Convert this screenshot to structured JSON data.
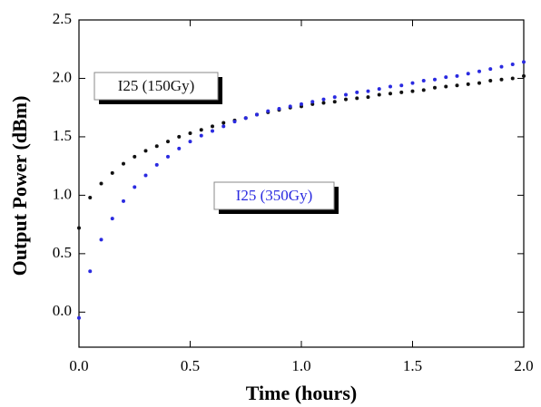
{
  "chart_data": {
    "type": "scatter",
    "xlabel": "Time (hours)",
    "ylabel": "Output Power (dBm)",
    "x": [
      0,
      0.05,
      0.1,
      0.15,
      0.2,
      0.25,
      0.3,
      0.35,
      0.4,
      0.45,
      0.5,
      0.55,
      0.6,
      0.65,
      0.7,
      0.75,
      0.8,
      0.85,
      0.9,
      0.95,
      1.0,
      1.05,
      1.1,
      1.15,
      1.2,
      1.25,
      1.3,
      1.35,
      1.4,
      1.45,
      1.5,
      1.55,
      1.6,
      1.65,
      1.7,
      1.75,
      1.8,
      1.85,
      1.9,
      1.95,
      2.0
    ],
    "series": [
      {
        "name": "I25 (150Gy)",
        "color": "#111111",
        "values": [
          0.72,
          0.98,
          1.1,
          1.19,
          1.27,
          1.33,
          1.38,
          1.42,
          1.46,
          1.5,
          1.53,
          1.56,
          1.59,
          1.62,
          1.64,
          1.66,
          1.69,
          1.71,
          1.73,
          1.75,
          1.76,
          1.78,
          1.79,
          1.8,
          1.82,
          1.83,
          1.84,
          1.86,
          1.87,
          1.88,
          1.89,
          1.9,
          1.92,
          1.93,
          1.94,
          1.95,
          1.96,
          1.98,
          1.99,
          2.0,
          2.02
        ]
      },
      {
        "name": "I25 (350Gy)",
        "color": "#2a2ae0",
        "values": [
          -0.05,
          0.35,
          0.62,
          0.8,
          0.95,
          1.07,
          1.17,
          1.26,
          1.33,
          1.4,
          1.46,
          1.51,
          1.55,
          1.59,
          1.63,
          1.66,
          1.69,
          1.72,
          1.74,
          1.76,
          1.78,
          1.8,
          1.82,
          1.84,
          1.86,
          1.88,
          1.89,
          1.91,
          1.93,
          1.94,
          1.96,
          1.98,
          1.99,
          2.01,
          2.02,
          2.04,
          2.06,
          2.08,
          2.1,
          2.12,
          2.14
        ]
      }
    ],
    "xlim": [
      0,
      2
    ],
    "xticks": [
      {
        "value": 0,
        "label": "0.0"
      },
      {
        "value": 0.5,
        "label": "0.5"
      },
      {
        "value": 1,
        "label": "1.0"
      },
      {
        "value": 1.5,
        "label": "1.5"
      },
      {
        "value": 2,
        "label": "2.0"
      }
    ],
    "ylim": [
      -0.3,
      2.5
    ],
    "yticks": [
      {
        "value": 0,
        "label": "0.0"
      },
      0.5,
      {
        "value": 1,
        "label": "1.0"
      },
      1.5,
      {
        "value": 2,
        "label": "2.0"
      },
      2.5
    ],
    "grid": false
  }
}
